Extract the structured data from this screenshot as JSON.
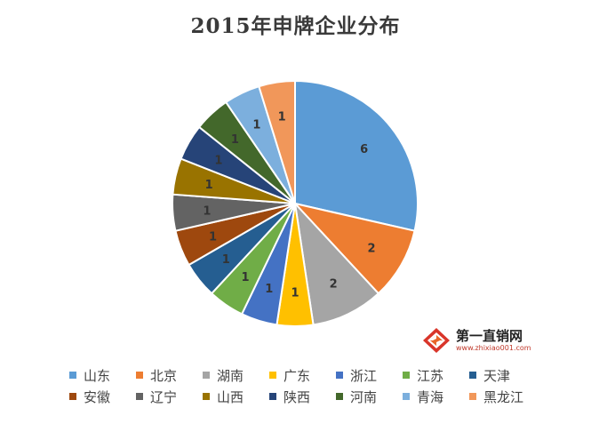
{
  "chart_data": {
    "type": "pie",
    "title": "2015年申牌企业分布",
    "categories": [
      "山东",
      "北京",
      "湖南",
      "广东",
      "浙江",
      "江苏",
      "天津",
      "安徽",
      "辽宁",
      "山西",
      "陕西",
      "河南",
      "青海",
      "黑龙江"
    ],
    "values": [
      6,
      2,
      2,
      1,
      1,
      1,
      1,
      1,
      1,
      1,
      1,
      1,
      1,
      1
    ],
    "data_labels": [
      "6",
      "2",
      "2",
      "1",
      "1",
      "1",
      "1",
      "1",
      "1",
      "1",
      "1",
      "1",
      "1",
      "1"
    ],
    "colors": [
      "#5B9BD5",
      "#ED7D31",
      "#A5A5A5",
      "#FFC000",
      "#4472C4",
      "#70AD47",
      "#255E91",
      "#9E480E",
      "#636363",
      "#997300",
      "#264478",
      "#43682B",
      "#7CAFDD",
      "#F1975A"
    ],
    "start_angle": 0,
    "direction": "clockwise",
    "legend_position": "bottom"
  },
  "watermark": {
    "name": "第一直销网",
    "url": "www.zhixiao001.com",
    "icon": "swirl-diamond-logo-icon"
  }
}
